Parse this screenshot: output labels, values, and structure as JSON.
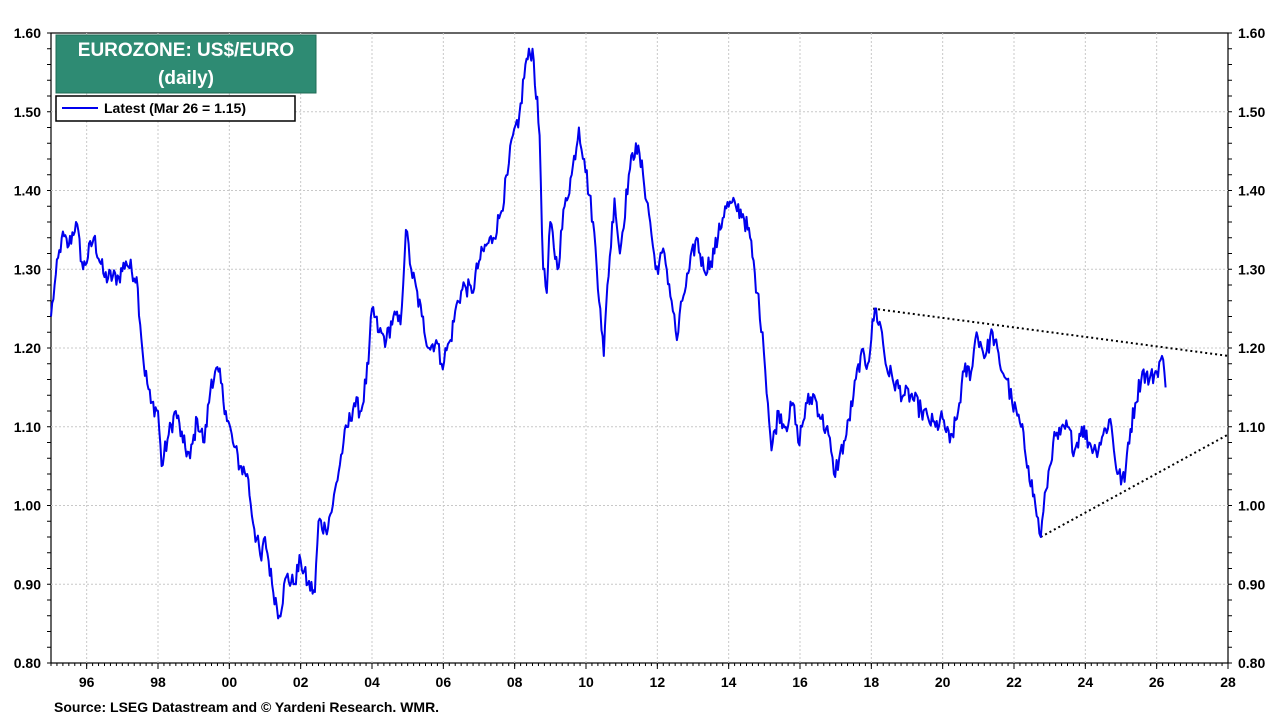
{
  "chart_data": {
    "type": "line",
    "title": "EUROZONE: US$/EURO",
    "subtitle": "(daily)",
    "source": "Source: LSEG Datastream and © Yardeni Research. WMR.",
    "xlim": [
      1995,
      2028
    ],
    "ylim": [
      0.8,
      1.6
    ],
    "y_ticks": [
      0.8,
      0.9,
      1.0,
      1.1,
      1.2,
      1.3,
      1.4,
      1.5,
      1.6
    ],
    "y_tick_labels": [
      "0.80",
      "0.90",
      "1.00",
      "1.10",
      "1.20",
      "1.30",
      "1.40",
      "1.50",
      "1.60"
    ],
    "x_ticks": [
      1996,
      1998,
      2000,
      2002,
      2004,
      2006,
      2008,
      2010,
      2012,
      2014,
      2016,
      2018,
      2020,
      2022,
      2024,
      2026,
      2028
    ],
    "x_tick_labels": [
      "96",
      "98",
      "00",
      "02",
      "04",
      "06",
      "08",
      "10",
      "12",
      "14",
      "16",
      "18",
      "20",
      "22",
      "24",
      "26",
      "28"
    ],
    "grid": true,
    "legend_position": "top-left",
    "series": [
      {
        "name": "Latest (Mar 26 = 1.15)",
        "color": "#0000ee",
        "points": [
          [
            1995.0,
            1.24
          ],
          [
            1995.1,
            1.28
          ],
          [
            1995.3,
            1.34
          ],
          [
            1995.5,
            1.33
          ],
          [
            1995.7,
            1.36
          ],
          [
            1995.9,
            1.3
          ],
          [
            1996.2,
            1.34
          ],
          [
            1996.5,
            1.29
          ],
          [
            1996.9,
            1.29
          ],
          [
            1997.1,
            1.31
          ],
          [
            1997.4,
            1.29
          ],
          [
            1997.6,
            1.18
          ],
          [
            1997.8,
            1.13
          ],
          [
            1998.0,
            1.12
          ],
          [
            1998.1,
            1.05
          ],
          [
            1998.3,
            1.09
          ],
          [
            1998.5,
            1.12
          ],
          [
            1998.7,
            1.08
          ],
          [
            1998.9,
            1.06
          ],
          [
            1999.1,
            1.11
          ],
          [
            1999.3,
            1.08
          ],
          [
            1999.5,
            1.16
          ],
          [
            1999.7,
            1.17
          ],
          [
            1999.9,
            1.12
          ],
          [
            2000.1,
            1.08
          ],
          [
            2000.3,
            1.05
          ],
          [
            2000.5,
            1.04
          ],
          [
            2000.7,
            0.97
          ],
          [
            2000.9,
            0.93
          ],
          [
            2001.0,
            0.96
          ],
          [
            2001.2,
            0.9
          ],
          [
            2001.4,
            0.86
          ],
          [
            2001.6,
            0.91
          ],
          [
            2001.8,
            0.9
          ],
          [
            2002.0,
            0.93
          ],
          [
            2002.2,
            0.9
          ],
          [
            2002.4,
            0.89
          ],
          [
            2002.5,
            0.98
          ],
          [
            2002.7,
            0.97
          ],
          [
            2002.9,
            1.0
          ],
          [
            2003.2,
            1.08
          ],
          [
            2003.5,
            1.13
          ],
          [
            2003.7,
            1.12
          ],
          [
            2003.9,
            1.18
          ],
          [
            2004.0,
            1.25
          ],
          [
            2004.2,
            1.22
          ],
          [
            2004.4,
            1.21
          ],
          [
            2004.6,
            1.24
          ],
          [
            2004.8,
            1.23
          ],
          [
            2004.95,
            1.35
          ],
          [
            2005.1,
            1.3
          ],
          [
            2005.4,
            1.24
          ],
          [
            2005.6,
            1.2
          ],
          [
            2005.8,
            1.21
          ],
          [
            2005.95,
            1.18
          ],
          [
            2006.2,
            1.21
          ],
          [
            2006.4,
            1.26
          ],
          [
            2006.6,
            1.28
          ],
          [
            2006.8,
            1.27
          ],
          [
            2007.0,
            1.31
          ],
          [
            2007.2,
            1.33
          ],
          [
            2007.4,
            1.34
          ],
          [
            2007.6,
            1.37
          ],
          [
            2007.8,
            1.42
          ],
          [
            2007.95,
            1.47
          ],
          [
            2008.1,
            1.48
          ],
          [
            2008.3,
            1.56
          ],
          [
            2008.5,
            1.58
          ],
          [
            2008.7,
            1.47
          ],
          [
            2008.8,
            1.3
          ],
          [
            2008.9,
            1.27
          ],
          [
            2009.0,
            1.36
          ],
          [
            2009.2,
            1.3
          ],
          [
            2009.4,
            1.38
          ],
          [
            2009.6,
            1.42
          ],
          [
            2009.8,
            1.48
          ],
          [
            2009.95,
            1.44
          ],
          [
            2010.2,
            1.36
          ],
          [
            2010.4,
            1.25
          ],
          [
            2010.5,
            1.19
          ],
          [
            2010.6,
            1.28
          ],
          [
            2010.8,
            1.39
          ],
          [
            2010.95,
            1.32
          ],
          [
            2011.2,
            1.42
          ],
          [
            2011.4,
            1.46
          ],
          [
            2011.6,
            1.42
          ],
          [
            2011.8,
            1.36
          ],
          [
            2011.95,
            1.3
          ],
          [
            2012.2,
            1.32
          ],
          [
            2012.4,
            1.26
          ],
          [
            2012.55,
            1.21
          ],
          [
            2012.7,
            1.26
          ],
          [
            2012.9,
            1.3
          ],
          [
            2013.1,
            1.34
          ],
          [
            2013.3,
            1.3
          ],
          [
            2013.5,
            1.31
          ],
          [
            2013.7,
            1.34
          ],
          [
            2013.9,
            1.38
          ],
          [
            2014.2,
            1.38
          ],
          [
            2014.4,
            1.37
          ],
          [
            2014.6,
            1.34
          ],
          [
            2014.8,
            1.27
          ],
          [
            2014.95,
            1.22
          ],
          [
            2015.1,
            1.13
          ],
          [
            2015.2,
            1.07
          ],
          [
            2015.4,
            1.12
          ],
          [
            2015.6,
            1.1
          ],
          [
            2015.8,
            1.13
          ],
          [
            2015.95,
            1.08
          ],
          [
            2016.2,
            1.13
          ],
          [
            2016.4,
            1.14
          ],
          [
            2016.6,
            1.11
          ],
          [
            2016.8,
            1.09
          ],
          [
            2016.95,
            1.04
          ],
          [
            2017.1,
            1.06
          ],
          [
            2017.3,
            1.09
          ],
          [
            2017.5,
            1.14
          ],
          [
            2017.7,
            1.19
          ],
          [
            2017.9,
            1.18
          ],
          [
            2018.1,
            1.25
          ],
          [
            2018.3,
            1.22
          ],
          [
            2018.4,
            1.18
          ],
          [
            2018.6,
            1.16
          ],
          [
            2018.9,
            1.14
          ],
          [
            2019.1,
            1.14
          ],
          [
            2019.4,
            1.12
          ],
          [
            2019.6,
            1.11
          ],
          [
            2019.8,
            1.1
          ],
          [
            2020.0,
            1.11
          ],
          [
            2020.2,
            1.08
          ],
          [
            2020.4,
            1.11
          ],
          [
            2020.6,
            1.17
          ],
          [
            2020.8,
            1.17
          ],
          [
            2020.95,
            1.22
          ],
          [
            2021.2,
            1.19
          ],
          [
            2021.4,
            1.22
          ],
          [
            2021.6,
            1.18
          ],
          [
            2021.8,
            1.16
          ],
          [
            2021.95,
            1.13
          ],
          [
            2022.2,
            1.1
          ],
          [
            2022.4,
            1.05
          ],
          [
            2022.6,
            1.0
          ],
          [
            2022.75,
            0.96
          ],
          [
            2022.9,
            1.02
          ],
          [
            2023.1,
            1.08
          ],
          [
            2023.3,
            1.09
          ],
          [
            2023.5,
            1.1
          ],
          [
            2023.7,
            1.07
          ],
          [
            2023.9,
            1.1
          ],
          [
            2024.1,
            1.08
          ],
          [
            2024.3,
            1.07
          ],
          [
            2024.5,
            1.09
          ],
          [
            2024.7,
            1.11
          ],
          [
            2024.9,
            1.04
          ],
          [
            2025.1,
            1.03
          ],
          [
            2025.2,
            1.08
          ],
          [
            2025.4,
            1.13
          ],
          [
            2025.6,
            1.17
          ],
          [
            2025.8,
            1.16
          ],
          [
            2026.0,
            1.17
          ],
          [
            2026.15,
            1.19
          ],
          [
            2026.25,
            1.15
          ]
        ]
      }
    ],
    "trendlines": [
      {
        "style": "dotted",
        "points": [
          [
            2018.05,
            1.25
          ],
          [
            2028.0,
            1.19
          ]
        ]
      },
      {
        "style": "dotted",
        "points": [
          [
            2022.75,
            0.96
          ],
          [
            2028.0,
            1.09
          ]
        ]
      }
    ]
  }
}
